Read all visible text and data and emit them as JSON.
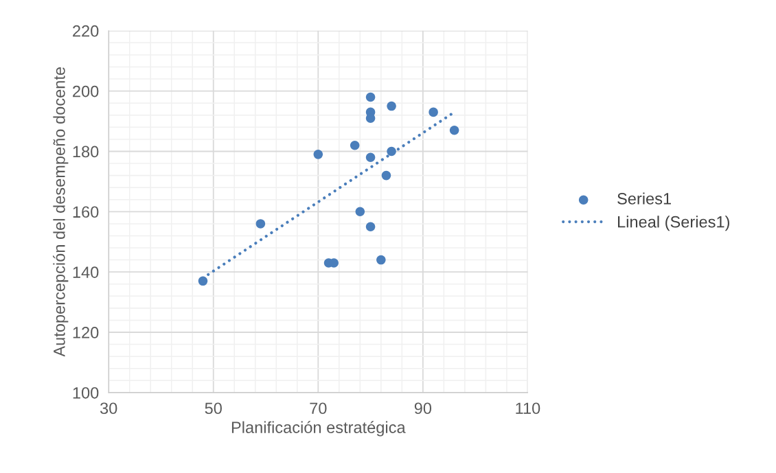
{
  "chart_data": {
    "type": "scatter",
    "xlabel": "Planificación estratégica",
    "ylabel": "Autopercepción del desempeño docente",
    "xlim": [
      30,
      110
    ],
    "xticks": [
      30,
      50,
      70,
      90,
      110
    ],
    "ylim": [
      100,
      220
    ],
    "yticks": [
      100,
      120,
      140,
      160,
      180,
      200,
      220
    ],
    "grid": true,
    "legend": "right",
    "marker": "circle",
    "series": [
      {
        "name": "Series1",
        "color": "#4a7ebb",
        "x": [
          48,
          59,
          70,
          72,
          73,
          77,
          78,
          80,
          80,
          80,
          80,
          80,
          82,
          83,
          84,
          84,
          92,
          96
        ],
        "values": [
          137,
          156,
          179,
          143,
          143,
          182,
          160,
          198,
          193,
          191,
          178,
          155,
          144,
          172,
          195,
          180,
          193,
          187
        ]
      },
      {
        "name": "Lineal (Series1)",
        "color": "#4a7ebb",
        "type": "line",
        "line_style": "dotted",
        "marker": "none",
        "x": [
          48,
          96
        ],
        "values": [
          138,
          193
        ]
      }
    ]
  }
}
